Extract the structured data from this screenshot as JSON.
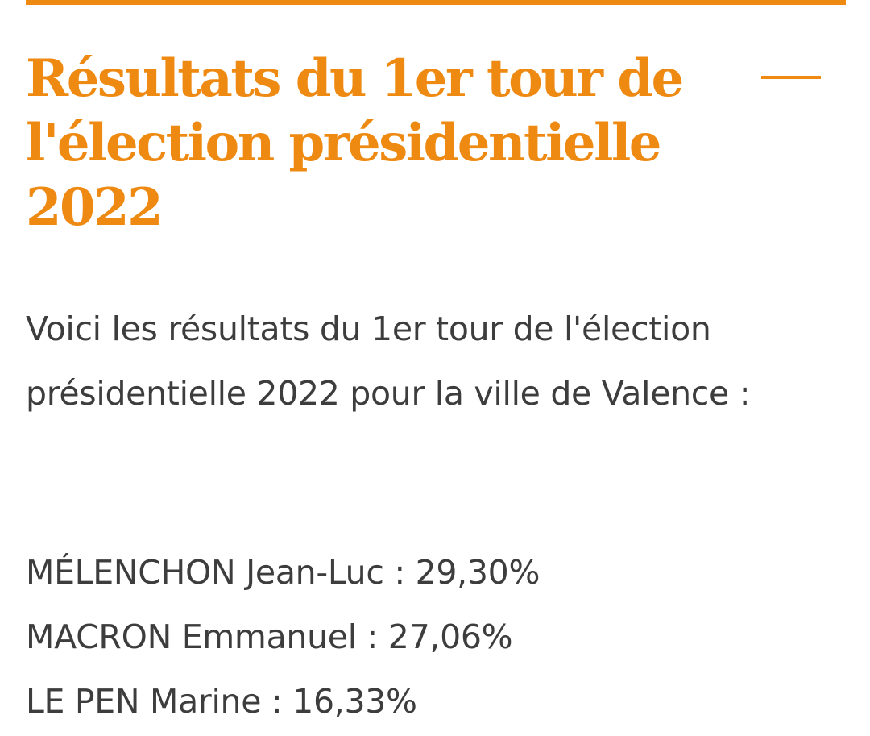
{
  "header": {
    "title": "Résultats du 1er tour de l'élection présidentielle 2022",
    "toggle_icon": "collapse-dash-icon"
  },
  "article": {
    "intro": "Voici les résultats du 1er tour de l'élection présidentielle 2022 pour la ville de Valence :",
    "results": [
      {
        "candidate": "MÉLENCHON Jean-Luc",
        "percent": "29,30%"
      },
      {
        "candidate": "MACRON Emmanuel",
        "percent": "27,06%"
      },
      {
        "candidate": "LE PEN Marine",
        "percent": "16,33%"
      }
    ]
  },
  "colors": {
    "accent": "#ee8a12",
    "text": "#3d3d3d",
    "background": "#ffffff"
  }
}
